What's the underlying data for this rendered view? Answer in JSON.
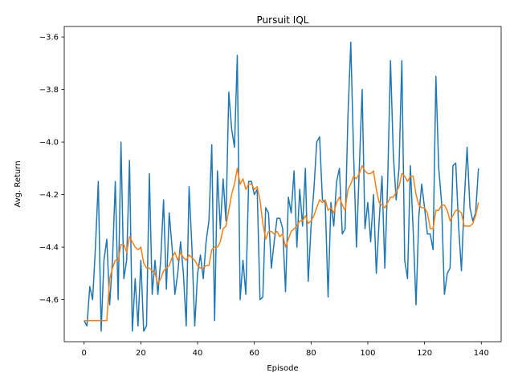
{
  "chart_data": {
    "type": "line",
    "title": "Pursuit IQL",
    "xlabel": "Episode",
    "ylabel": "Avg. Return",
    "xlim": [
      -7,
      147
    ],
    "ylim": [
      -4.76,
      -3.56
    ],
    "xticks": [
      0,
      20,
      40,
      60,
      80,
      100,
      120,
      140
    ],
    "yticks": [
      -4.6,
      -4.4,
      -4.2,
      -4.0,
      -3.8,
      -3.6
    ],
    "ytick_labels": [
      "−4.6",
      "−4.4",
      "−4.2",
      "−4.0",
      "−3.8",
      "−3.6"
    ],
    "grid": false,
    "legend": false,
    "colors": {
      "raw": "#1f77b4",
      "smoothed": "#ff7f0e"
    },
    "series": [
      {
        "values": [
          -4.68,
          -4.7,
          -4.55,
          -4.6,
          -4.4,
          -4.15,
          -4.72,
          -4.45,
          -4.37,
          -4.62,
          -4.45,
          -4.15,
          -4.6,
          -4.0,
          -4.52,
          -4.45,
          -4.07,
          -4.72,
          -4.52,
          -4.7,
          -4.45,
          -4.72,
          -4.7,
          -4.12,
          -4.58,
          -4.45,
          -4.58,
          -4.45,
          -4.22,
          -4.56,
          -4.27,
          -4.4,
          -4.58,
          -4.5,
          -4.38,
          -4.5,
          -4.7,
          -4.17,
          -4.4,
          -4.7,
          -4.5,
          -4.43,
          -4.52,
          -4.38,
          -4.3,
          -4.01,
          -4.68,
          -4.11,
          -4.33,
          -4.14,
          -4.3,
          -3.81,
          -3.95,
          -4.02,
          -3.67,
          -4.6,
          -4.45,
          -4.58,
          -4.15,
          -4.15,
          -4.2,
          -4.18,
          -4.6,
          -4.59,
          -4.25,
          -4.27,
          -4.48,
          -4.38,
          -4.29,
          -4.29,
          -4.33,
          -4.57,
          -4.21,
          -4.27,
          -4.11,
          -4.4,
          -4.18,
          -4.32,
          -4.1,
          -4.53,
          -4.32,
          -4.18,
          -4.0,
          -3.98,
          -4.22,
          -4.23,
          -4.59,
          -4.23,
          -4.32,
          -4.15,
          -4.1,
          -4.35,
          -4.33,
          -3.9,
          -3.62,
          -4.05,
          -4.4,
          -4.1,
          -3.8,
          -4.33,
          -4.23,
          -4.38,
          -4.2,
          -4.5,
          -4.3,
          -4.13,
          -4.48,
          -4.15,
          -3.69,
          -4.05,
          -4.22,
          -4.1,
          -3.69,
          -4.45,
          -4.52,
          -4.09,
          -4.34,
          -4.62,
          -4.28,
          -4.16,
          -4.25,
          -4.35,
          -4.35,
          -4.41,
          -3.75,
          -4.1,
          -4.23,
          -4.58,
          -4.5,
          -4.48,
          -4.09,
          -4.08,
          -4.32,
          -4.49,
          -4.22,
          -4.02,
          -4.25,
          -4.3,
          -4.27,
          -4.1
        ]
      },
      {
        "values": [
          -4.68,
          -4.68,
          -4.68,
          -4.68,
          -4.68,
          -4.68,
          -4.68,
          -4.68,
          -4.68,
          -4.52,
          -4.48,
          -4.45,
          -4.45,
          -4.39,
          -4.39,
          -4.42,
          -4.36,
          -4.38,
          -4.4,
          -4.41,
          -4.4,
          -4.46,
          -4.48,
          -4.48,
          -4.49,
          -4.5,
          -4.54,
          -4.52,
          -4.49,
          -4.48,
          -4.47,
          -4.44,
          -4.42,
          -4.45,
          -4.42,
          -4.44,
          -4.45,
          -4.43,
          -4.44,
          -4.45,
          -4.47,
          -4.48,
          -4.48,
          -4.47,
          -4.47,
          -4.41,
          -4.4,
          -4.4,
          -4.38,
          -4.33,
          -4.32,
          -4.26,
          -4.2,
          -4.16,
          -4.1,
          -4.16,
          -4.14,
          -4.18,
          -4.16,
          -4.16,
          -4.18,
          -4.17,
          -4.22,
          -4.31,
          -4.37,
          -4.34,
          -4.34,
          -4.35,
          -4.34,
          -4.36,
          -4.35,
          -4.4,
          -4.37,
          -4.34,
          -4.33,
          -4.32,
          -4.3,
          -4.3,
          -4.28,
          -4.31,
          -4.3,
          -4.28,
          -4.25,
          -4.22,
          -4.23,
          -4.22,
          -4.26,
          -4.25,
          -4.27,
          -4.23,
          -4.21,
          -4.24,
          -4.26,
          -4.18,
          -4.16,
          -4.13,
          -4.14,
          -4.12,
          -4.09,
          -4.11,
          -4.12,
          -4.12,
          -4.11,
          -4.18,
          -4.23,
          -4.24,
          -4.25,
          -4.23,
          -4.21,
          -4.21,
          -4.19,
          -4.17,
          -4.12,
          -4.13,
          -4.15,
          -4.13,
          -4.13,
          -4.2,
          -4.24,
          -4.25,
          -4.25,
          -4.27,
          -4.33,
          -4.33,
          -4.26,
          -4.26,
          -4.24,
          -4.24,
          -4.26,
          -4.3,
          -4.28,
          -4.26,
          -4.26,
          -4.27,
          -4.32,
          -4.32,
          -4.32,
          -4.31,
          -4.28,
          -4.23
        ]
      }
    ]
  }
}
